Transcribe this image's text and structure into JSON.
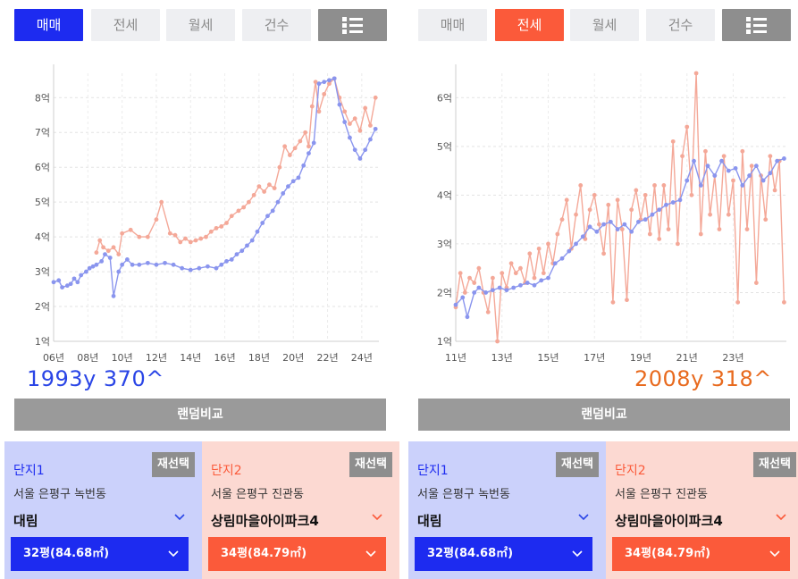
{
  "left": {
    "tabs": [
      {
        "label": "매매",
        "state": "active-blue"
      },
      {
        "label": "전세",
        "state": ""
      },
      {
        "label": "월세",
        "state": ""
      },
      {
        "label": "건수",
        "state": ""
      }
    ],
    "list_icon": "list-icon",
    "caption": "1993y 370^",
    "random_label": "랜덤비교",
    "chart_data": {
      "type": "line",
      "y_ticks": [
        "1억",
        "2억",
        "3억",
        "4억",
        "5억",
        "6억",
        "7억",
        "8억"
      ],
      "x_ticks": [
        "06년",
        "08년",
        "10년",
        "12년",
        "14년",
        "16년",
        "18년",
        "20년",
        "22년",
        "24년"
      ],
      "xlim": [
        2006,
        2025
      ],
      "ylim": [
        1,
        8.7
      ],
      "series": [
        {
          "color": "#8a95ee",
          "points": [
            [
              2006.0,
              2.7
            ],
            [
              2006.3,
              2.75
            ],
            [
              2006.5,
              2.55
            ],
            [
              2006.8,
              2.6
            ],
            [
              2007.0,
              2.65
            ],
            [
              2007.2,
              2.8
            ],
            [
              2007.4,
              2.7
            ],
            [
              2007.6,
              2.9
            ],
            [
              2007.9,
              3.0
            ],
            [
              2008.1,
              3.1
            ],
            [
              2008.3,
              3.15
            ],
            [
              2008.5,
              3.2
            ],
            [
              2008.8,
              3.3
            ],
            [
              2009.0,
              3.5
            ],
            [
              2009.3,
              3.4
            ],
            [
              2009.5,
              2.3
            ],
            [
              2009.8,
              3.0
            ],
            [
              2010.0,
              3.2
            ],
            [
              2010.3,
              3.35
            ],
            [
              2010.6,
              3.2
            ],
            [
              2011.0,
              3.2
            ],
            [
              2011.5,
              3.25
            ],
            [
              2012.0,
              3.2
            ],
            [
              2012.5,
              3.25
            ],
            [
              2013.0,
              3.2
            ],
            [
              2013.5,
              3.1
            ],
            [
              2014.0,
              3.05
            ],
            [
              2014.5,
              3.1
            ],
            [
              2015.0,
              3.15
            ],
            [
              2015.5,
              3.1
            ],
            [
              2015.8,
              3.2
            ],
            [
              2016.1,
              3.3
            ],
            [
              2016.4,
              3.35
            ],
            [
              2016.7,
              3.5
            ],
            [
              2017.0,
              3.6
            ],
            [
              2017.3,
              3.75
            ],
            [
              2017.6,
              3.9
            ],
            [
              2017.9,
              4.15
            ],
            [
              2018.2,
              4.4
            ],
            [
              2018.5,
              4.6
            ],
            [
              2018.8,
              4.75
            ],
            [
              2019.1,
              5.0
            ],
            [
              2019.4,
              5.25
            ],
            [
              2019.7,
              5.45
            ],
            [
              2020.0,
              5.6
            ],
            [
              2020.3,
              5.7
            ],
            [
              2020.6,
              6.05
            ],
            [
              2020.9,
              6.4
            ],
            [
              2021.2,
              6.7
            ],
            [
              2021.5,
              8.4
            ],
            [
              2021.8,
              8.45
            ],
            [
              2022.1,
              8.5
            ],
            [
              2022.4,
              8.55
            ],
            [
              2022.7,
              7.8
            ],
            [
              2023.0,
              7.3
            ],
            [
              2023.3,
              6.85
            ],
            [
              2023.6,
              6.5
            ],
            [
              2023.9,
              6.25
            ],
            [
              2024.2,
              6.5
            ],
            [
              2024.5,
              6.8
            ],
            [
              2024.8,
              7.1
            ]
          ]
        },
        {
          "color": "#f4a898",
          "points": [
            [
              2008.5,
              3.55
            ],
            [
              2008.7,
              3.9
            ],
            [
              2008.9,
              3.7
            ],
            [
              2009.2,
              3.6
            ],
            [
              2009.5,
              3.7
            ],
            [
              2009.8,
              3.5
            ],
            [
              2010.0,
              4.1
            ],
            [
              2010.5,
              4.2
            ],
            [
              2011.0,
              4.0
            ],
            [
              2011.5,
              4.0
            ],
            [
              2012.0,
              4.5
            ],
            [
              2012.3,
              5.0
            ],
            [
              2012.8,
              4.1
            ],
            [
              2013.1,
              4.05
            ],
            [
              2013.4,
              3.85
            ],
            [
              2013.7,
              3.95
            ],
            [
              2014.0,
              3.85
            ],
            [
              2014.3,
              3.9
            ],
            [
              2014.6,
              3.95
            ],
            [
              2014.9,
              4.0
            ],
            [
              2015.2,
              4.15
            ],
            [
              2015.5,
              4.25
            ],
            [
              2015.8,
              4.3
            ],
            [
              2016.1,
              4.4
            ],
            [
              2016.4,
              4.6
            ],
            [
              2016.8,
              4.75
            ],
            [
              2017.1,
              4.85
            ],
            [
              2017.4,
              5.0
            ],
            [
              2017.7,
              5.2
            ],
            [
              2018.0,
              5.45
            ],
            [
              2018.3,
              5.3
            ],
            [
              2018.6,
              5.5
            ],
            [
              2018.9,
              5.4
            ],
            [
              2019.2,
              6.0
            ],
            [
              2019.5,
              6.6
            ],
            [
              2019.8,
              6.35
            ],
            [
              2020.1,
              6.55
            ],
            [
              2020.4,
              6.75
            ],
            [
              2020.7,
              7.0
            ],
            [
              2020.9,
              6.6
            ],
            [
              2021.1,
              7.75
            ],
            [
              2021.3,
              8.45
            ],
            [
              2021.5,
              7.6
            ],
            [
              2021.8,
              8.1
            ],
            [
              2022.1,
              8.4
            ],
            [
              2022.4,
              8.55
            ],
            [
              2022.7,
              8.0
            ],
            [
              2023.0,
              7.6
            ],
            [
              2023.3,
              7.25
            ],
            [
              2023.6,
              7.4
            ],
            [
              2023.9,
              7.05
            ],
            [
              2024.2,
              7.7
            ],
            [
              2024.5,
              7.2
            ],
            [
              2024.8,
              8.0
            ]
          ]
        }
      ]
    },
    "card1": {
      "title": "단지1",
      "reselect": "재선택",
      "address": "서울 은평구 녹번동",
      "apt": "대림",
      "size": "32평(84.68㎡)"
    },
    "card2": {
      "title": "단지2",
      "reselect": "재선택",
      "address": "서울 은평구 진관동",
      "apt": "상림마을아이파크4",
      "size": "34평(84.79㎡)"
    }
  },
  "right": {
    "tabs": [
      {
        "label": "매매",
        "state": ""
      },
      {
        "label": "전세",
        "state": "active-orange"
      },
      {
        "label": "월세",
        "state": ""
      },
      {
        "label": "건수",
        "state": ""
      }
    ],
    "list_icon": "list-icon",
    "caption": "2008y 318^",
    "random_label": "랜덤비교",
    "chart_data": {
      "type": "line",
      "y_ticks": [
        "1억",
        "2억",
        "3억",
        "4억",
        "5억",
        "6억"
      ],
      "x_ticks": [
        "11년",
        "13년",
        "15년",
        "17년",
        "19년",
        "21년",
        "23년"
      ],
      "xlim": [
        2011,
        2025.3
      ],
      "ylim": [
        1,
        6.5
      ],
      "series": [
        {
          "color": "#8a95ee",
          "points": [
            [
              2011.0,
              1.75
            ],
            [
              2011.3,
              1.9
            ],
            [
              2011.5,
              1.5
            ],
            [
              2011.8,
              2.0
            ],
            [
              2012.0,
              2.1
            ],
            [
              2012.3,
              2.0
            ],
            [
              2012.6,
              2.05
            ],
            [
              2012.9,
              2.1
            ],
            [
              2013.2,
              2.05
            ],
            [
              2013.5,
              2.1
            ],
            [
              2013.8,
              2.15
            ],
            [
              2014.1,
              2.2
            ],
            [
              2014.4,
              2.15
            ],
            [
              2014.7,
              2.25
            ],
            [
              2015.0,
              2.3
            ],
            [
              2015.3,
              2.6
            ],
            [
              2015.6,
              2.7
            ],
            [
              2015.9,
              2.85
            ],
            [
              2016.2,
              3.0
            ],
            [
              2016.5,
              3.15
            ],
            [
              2016.8,
              3.35
            ],
            [
              2017.1,
              3.25
            ],
            [
              2017.4,
              3.4
            ],
            [
              2017.7,
              3.45
            ],
            [
              2018.0,
              3.3
            ],
            [
              2018.3,
              3.4
            ],
            [
              2018.6,
              3.25
            ],
            [
              2018.9,
              3.45
            ],
            [
              2019.2,
              3.5
            ],
            [
              2019.5,
              3.6
            ],
            [
              2019.8,
              3.7
            ],
            [
              2020.1,
              3.8
            ],
            [
              2020.4,
              3.85
            ],
            [
              2020.7,
              3.9
            ],
            [
              2021.0,
              4.3
            ],
            [
              2021.3,
              4.7
            ],
            [
              2021.6,
              4.2
            ],
            [
              2021.9,
              4.6
            ],
            [
              2022.2,
              4.4
            ],
            [
              2022.5,
              4.7
            ],
            [
              2022.8,
              4.5
            ],
            [
              2023.1,
              4.55
            ],
            [
              2023.4,
              4.2
            ],
            [
              2023.7,
              4.4
            ],
            [
              2024.0,
              4.6
            ],
            [
              2024.3,
              4.3
            ],
            [
              2024.6,
              4.45
            ],
            [
              2024.9,
              4.7
            ],
            [
              2025.2,
              4.75
            ]
          ]
        },
        {
          "color": "#f4a898",
          "points": [
            [
              2011.0,
              1.7
            ],
            [
              2011.2,
              2.4
            ],
            [
              2011.4,
              2.0
            ],
            [
              2011.6,
              2.3
            ],
            [
              2011.8,
              2.2
            ],
            [
              2012.0,
              2.5
            ],
            [
              2012.2,
              2.0
            ],
            [
              2012.4,
              1.6
            ],
            [
              2012.6,
              2.3
            ],
            [
              2012.8,
              1.0
            ],
            [
              2013.0,
              2.4
            ],
            [
              2013.2,
              2.1
            ],
            [
              2013.4,
              2.6
            ],
            [
              2013.6,
              2.4
            ],
            [
              2013.8,
              2.5
            ],
            [
              2014.0,
              2.2
            ],
            [
              2014.2,
              2.8
            ],
            [
              2014.4,
              2.3
            ],
            [
              2014.6,
              2.9
            ],
            [
              2014.8,
              2.4
            ],
            [
              2015.0,
              3.0
            ],
            [
              2015.2,
              2.6
            ],
            [
              2015.4,
              3.2
            ],
            [
              2015.6,
              3.5
            ],
            [
              2015.8,
              3.9
            ],
            [
              2016.0,
              2.9
            ],
            [
              2016.2,
              3.6
            ],
            [
              2016.4,
              4.2
            ],
            [
              2016.6,
              3.1
            ],
            [
              2016.8,
              3.7
            ],
            [
              2017.0,
              4.0
            ],
            [
              2017.2,
              3.4
            ],
            [
              2017.4,
              2.8
            ],
            [
              2017.6,
              3.8
            ],
            [
              2017.8,
              1.8
            ],
            [
              2018.0,
              3.9
            ],
            [
              2018.2,
              3.3
            ],
            [
              2018.4,
              1.85
            ],
            [
              2018.6,
              3.7
            ],
            [
              2018.8,
              4.1
            ],
            [
              2019.0,
              3.5
            ],
            [
              2019.2,
              4.0
            ],
            [
              2019.4,
              3.2
            ],
            [
              2019.6,
              4.2
            ],
            [
              2019.8,
              3.1
            ],
            [
              2020.0,
              4.2
            ],
            [
              2020.2,
              3.3
            ],
            [
              2020.4,
              5.1
            ],
            [
              2020.6,
              3.0
            ],
            [
              2020.8,
              4.8
            ],
            [
              2021.0,
              5.4
            ],
            [
              2021.2,
              4.0
            ],
            [
              2021.4,
              6.5
            ],
            [
              2021.6,
              3.2
            ],
            [
              2021.8,
              4.9
            ],
            [
              2022.0,
              3.6
            ],
            [
              2022.2,
              4.4
            ],
            [
              2022.4,
              3.3
            ],
            [
              2022.6,
              4.8
            ],
            [
              2022.8,
              3.6
            ],
            [
              2023.0,
              4.3
            ],
            [
              2023.2,
              1.8
            ],
            [
              2023.4,
              4.9
            ],
            [
              2023.6,
              3.3
            ],
            [
              2023.8,
              4.6
            ],
            [
              2024.0,
              2.2
            ],
            [
              2024.2,
              4.4
            ],
            [
              2024.4,
              3.5
            ],
            [
              2024.6,
              4.8
            ],
            [
              2024.8,
              4.1
            ],
            [
              2025.0,
              4.7
            ],
            [
              2025.2,
              1.8
            ]
          ]
        }
      ]
    },
    "card1": {
      "title": "단지1",
      "reselect": "재선택",
      "address": "서울 은평구 녹번동",
      "apt": "대림",
      "size": "32평(84.68㎡)"
    },
    "card2": {
      "title": "단지2",
      "reselect": "재선택",
      "address": "서울 은평구 진관동",
      "apt": "상림마을아이파크4",
      "size": "34평(84.79㎡)"
    }
  }
}
